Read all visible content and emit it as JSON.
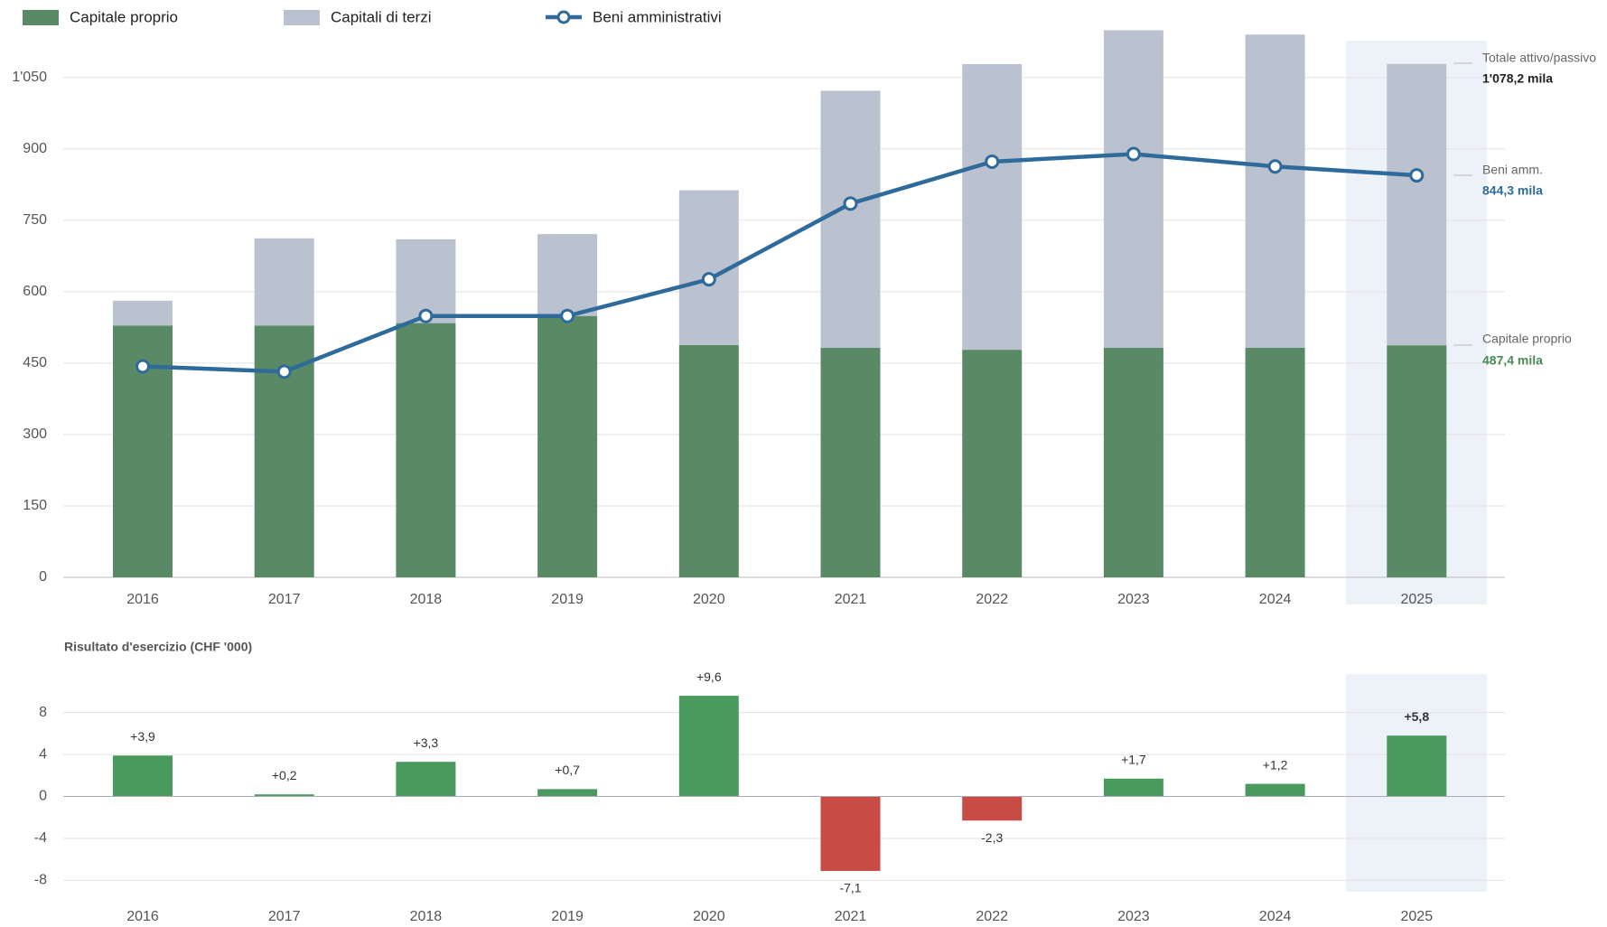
{
  "chart_data": [
    {
      "type": "stacked_bar_line",
      "categories": [
        "2016",
        "2017",
        "2018",
        "2019",
        "2020",
        "2021",
        "2022",
        "2023",
        "2024",
        "2025"
      ],
      "series": [
        {
          "name": "Capitale proprio",
          "color": "#5a8a65",
          "values": [
            529,
            529,
            534,
            549,
            488,
            482,
            478,
            482,
            482,
            487.4
          ]
        },
        {
          "name": "Capitali di terzi",
          "color": "#bac2cf",
          "values": [
            52,
            183,
            176,
            172,
            325,
            540,
            600,
            667,
            658,
            590.8
          ]
        },
        {
          "name": "Beni amministrativi",
          "color": "#2f6b9a",
          "kind": "line",
          "values": [
            443,
            432,
            549,
            549,
            626,
            785,
            873,
            889,
            863,
            844.3
          ]
        }
      ],
      "ylim": [
        0,
        1150
      ],
      "yticks": [
        0,
        150,
        300,
        450,
        600,
        750,
        900,
        {
          "value": 1050,
          "label": "1'050"
        }
      ],
      "grid": true,
      "annotations": [
        {
          "label": "Totale attivo/passivo",
          "text": "1'078,2 mila"
        },
        {
          "label": "Beni amm.",
          "text": "844,3 mila"
        },
        {
          "label": "Capitale proprio",
          "text": "487,4 mila"
        }
      ]
    },
    {
      "type": "bar",
      "title": "Risultato d'esercizio (CHF '000)",
      "categories": [
        "2016",
        "2017",
        "2018",
        "2019",
        "2020",
        "2021",
        "2022",
        "2023",
        "2024",
        "2025"
      ],
      "values": [
        3.9,
        0.2,
        3.3,
        0.7,
        9.6,
        -7.1,
        -2.3,
        1.7,
        1.2,
        5.8
      ],
      "value_labels": [
        "+3,9",
        "+0,2",
        "+3,3",
        "+0,7",
        "+9,6",
        "-7,1",
        "-2,3",
        "+1,7",
        "+1,2",
        "+5,8"
      ],
      "positive_color": "#4a9a5e",
      "negative_color": "#c84b45",
      "ylim": [
        -9,
        11.5
      ],
      "yticks": [
        -8,
        -4,
        0,
        4,
        8
      ],
      "grid": true
    }
  ]
}
